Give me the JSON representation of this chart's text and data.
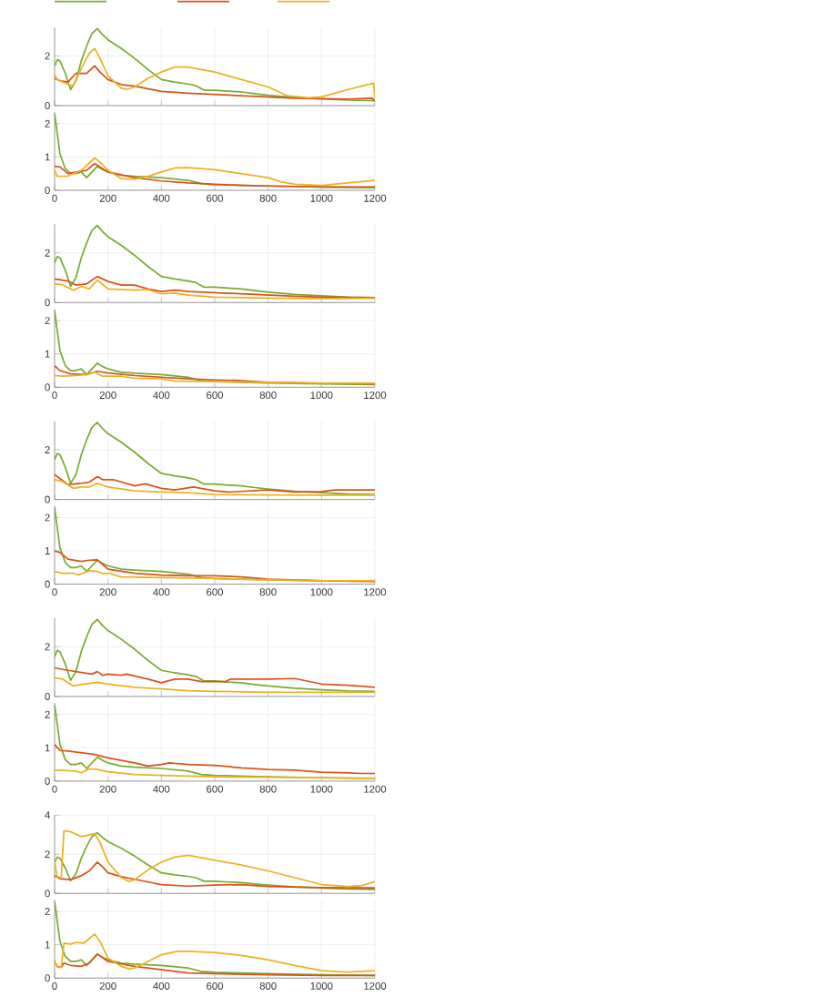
{
  "chart_data": [
    {
      "type": "line",
      "grid": true,
      "tick_labels": "y",
      "xlim": [
        0,
        1200
      ],
      "xticks": [
        0,
        200,
        400,
        600,
        800,
        1000,
        1200
      ],
      "ylim": [
        0,
        3.15
      ],
      "yticks": [
        0,
        2
      ],
      "series": [
        {
          "color": "#77ac30",
          "x": [
            0,
            10,
            20,
            40,
            60,
            80,
            100,
            120,
            140,
            160,
            180,
            200,
            250,
            300,
            350,
            400,
            450,
            500,
            530,
            560,
            600,
            650,
            700,
            750,
            800,
            900,
            1000,
            1100,
            1200
          ],
          "values": [
            1.6,
            1.85,
            1.8,
            1.3,
            0.65,
            1.0,
            1.8,
            2.4,
            2.9,
            3.1,
            2.85,
            2.65,
            2.3,
            1.9,
            1.45,
            1.05,
            0.95,
            0.87,
            0.8,
            0.62,
            0.62,
            0.58,
            0.55,
            0.48,
            0.42,
            0.33,
            0.27,
            0.22,
            0.2
          ]
        },
        {
          "color": "#d95319",
          "x": [
            0,
            20,
            50,
            80,
            100,
            120,
            150,
            170,
            200,
            250,
            300,
            400,
            500,
            600,
            700,
            800,
            900,
            1000,
            1100,
            1190,
            1200
          ],
          "values": [
            1.1,
            1.0,
            0.95,
            1.3,
            1.3,
            1.3,
            1.6,
            1.35,
            1.05,
            0.85,
            0.78,
            0.57,
            0.5,
            0.45,
            0.4,
            0.35,
            0.3,
            0.28,
            0.26,
            0.3,
            0.2
          ]
        },
        {
          "color": "#edb120",
          "x": [
            0,
            10,
            50,
            70,
            100,
            130,
            150,
            170,
            200,
            250,
            270,
            300,
            350,
            400,
            450,
            500,
            600,
            700,
            800,
            870,
            950,
            1000,
            1050,
            1100,
            1150,
            1195,
            1200
          ],
          "values": [
            1.25,
            1.05,
            0.85,
            0.8,
            1.5,
            2.1,
            2.3,
            1.9,
            1.2,
            0.7,
            0.65,
            0.75,
            1.1,
            1.35,
            1.55,
            1.55,
            1.35,
            1.05,
            0.75,
            0.4,
            0.32,
            0.35,
            0.5,
            0.65,
            0.78,
            0.9,
            0.3
          ]
        }
      ]
    },
    {
      "type": "line",
      "grid": true,
      "xlim": [
        0,
        1200
      ],
      "xticks": [
        0,
        200,
        400,
        600,
        800,
        1000,
        1200
      ],
      "ylim": [
        0,
        2.35
      ],
      "yticks": [
        0,
        1,
        2
      ],
      "series": [
        {
          "color": "#77ac30",
          "x": [
            0,
            10,
            20,
            40,
            60,
            80,
            100,
            120,
            140,
            160,
            180,
            200,
            250,
            300,
            400,
            500,
            550,
            600,
            700,
            800,
            1000,
            1200
          ],
          "values": [
            2.3,
            1.7,
            1.1,
            0.65,
            0.5,
            0.5,
            0.55,
            0.38,
            0.55,
            0.72,
            0.62,
            0.55,
            0.45,
            0.42,
            0.38,
            0.3,
            0.2,
            0.17,
            0.15,
            0.13,
            0.1,
            0.08
          ]
        },
        {
          "color": "#d95319",
          "x": [
            0,
            20,
            50,
            80,
            120,
            150,
            200,
            300,
            400,
            500,
            600,
            700,
            800,
            1000,
            1200
          ],
          "values": [
            0.72,
            0.7,
            0.5,
            0.55,
            0.6,
            0.8,
            0.55,
            0.38,
            0.28,
            0.22,
            0.18,
            0.15,
            0.13,
            0.1,
            0.1
          ]
        },
        {
          "color": "#edb120",
          "x": [
            0,
            10,
            50,
            100,
            150,
            170,
            200,
            250,
            300,
            350,
            400,
            450,
            500,
            600,
            700,
            800,
            850,
            900,
            1000,
            1100,
            1200
          ],
          "values": [
            0.6,
            0.42,
            0.43,
            0.6,
            0.97,
            0.85,
            0.6,
            0.35,
            0.33,
            0.42,
            0.55,
            0.67,
            0.68,
            0.62,
            0.5,
            0.38,
            0.25,
            0.18,
            0.15,
            0.22,
            0.3
          ]
        }
      ]
    },
    {
      "type": "line",
      "grid": true,
      "tick_labels": "y",
      "xlim": [
        0,
        1200
      ],
      "xticks": [
        0,
        200,
        400,
        600,
        800,
        1000,
        1200
      ],
      "ylim": [
        0,
        3.15
      ],
      "yticks": [
        0,
        2
      ],
      "series": [
        {
          "color": "#77ac30",
          "x": [
            0,
            10,
            20,
            40,
            60,
            80,
            100,
            120,
            140,
            160,
            180,
            200,
            250,
            300,
            350,
            400,
            450,
            500,
            530,
            560,
            600,
            650,
            700,
            750,
            800,
            900,
            1000,
            1100,
            1200
          ],
          "values": [
            1.6,
            1.85,
            1.8,
            1.3,
            0.65,
            1.0,
            1.8,
            2.4,
            2.9,
            3.1,
            2.85,
            2.65,
            2.3,
            1.9,
            1.45,
            1.05,
            0.95,
            0.87,
            0.8,
            0.62,
            0.62,
            0.58,
            0.55,
            0.48,
            0.42,
            0.33,
            0.27,
            0.22,
            0.2
          ]
        },
        {
          "color": "#d95319",
          "x": [
            0,
            50,
            80,
            120,
            160,
            200,
            250,
            300,
            350,
            400,
            450,
            500,
            600,
            700,
            800,
            900,
            1000,
            1200
          ],
          "values": [
            0.95,
            0.87,
            0.7,
            0.75,
            1.05,
            0.85,
            0.7,
            0.7,
            0.55,
            0.45,
            0.5,
            0.45,
            0.4,
            0.35,
            0.3,
            0.25,
            0.22,
            0.2
          ]
        },
        {
          "color": "#edb120",
          "x": [
            0,
            30,
            70,
            100,
            130,
            160,
            200,
            300,
            350,
            400,
            450,
            500,
            600,
            800,
            1000,
            1200
          ],
          "values": [
            0.75,
            0.72,
            0.5,
            0.65,
            0.55,
            0.9,
            0.55,
            0.5,
            0.52,
            0.35,
            0.38,
            0.3,
            0.22,
            0.18,
            0.15,
            0.17
          ]
        }
      ]
    },
    {
      "type": "line",
      "grid": true,
      "xlim": [
        0,
        1200
      ],
      "xticks": [
        0,
        200,
        400,
        600,
        800,
        1000,
        1200
      ],
      "ylim": [
        0,
        2.35
      ],
      "yticks": [
        0,
        1,
        2
      ],
      "series": [
        {
          "color": "#77ac30",
          "x": [
            0,
            10,
            20,
            40,
            60,
            80,
            100,
            120,
            140,
            160,
            180,
            200,
            250,
            300,
            400,
            500,
            550,
            600,
            700,
            800,
            1000,
            1200
          ],
          "values": [
            2.3,
            1.7,
            1.1,
            0.65,
            0.5,
            0.5,
            0.55,
            0.38,
            0.55,
            0.72,
            0.62,
            0.55,
            0.45,
            0.42,
            0.38,
            0.3,
            0.2,
            0.17,
            0.15,
            0.13,
            0.1,
            0.08
          ]
        },
        {
          "color": "#d95319",
          "x": [
            0,
            20,
            60,
            120,
            160,
            200,
            300,
            400,
            500,
            600,
            700,
            800,
            1000,
            1200
          ],
          "values": [
            0.65,
            0.5,
            0.4,
            0.38,
            0.48,
            0.43,
            0.35,
            0.3,
            0.25,
            0.22,
            0.2,
            0.15,
            0.12,
            0.1
          ]
        },
        {
          "color": "#edb120",
          "x": [
            0,
            30,
            80,
            120,
            150,
            180,
            250,
            300,
            400,
            450,
            600,
            800,
            1000,
            1200
          ],
          "values": [
            0.35,
            0.33,
            0.35,
            0.38,
            0.45,
            0.33,
            0.33,
            0.27,
            0.25,
            0.18,
            0.17,
            0.15,
            0.12,
            0.12
          ]
        }
      ]
    },
    {
      "type": "line",
      "grid": true,
      "tick_labels": "y",
      "xlim": [
        0,
        1200
      ],
      "xticks": [
        0,
        200,
        400,
        600,
        800,
        1000,
        1200
      ],
      "ylim": [
        0,
        3.15
      ],
      "yticks": [
        0,
        2
      ],
      "series": [
        {
          "color": "#77ac30",
          "x": [
            0,
            10,
            20,
            40,
            60,
            80,
            100,
            120,
            140,
            160,
            180,
            200,
            250,
            300,
            350,
            400,
            450,
            500,
            530,
            560,
            600,
            650,
            700,
            750,
            800,
            900,
            1000,
            1100,
            1200
          ],
          "values": [
            1.6,
            1.85,
            1.8,
            1.3,
            0.65,
            1.0,
            1.8,
            2.4,
            2.9,
            3.1,
            2.85,
            2.65,
            2.3,
            1.9,
            1.45,
            1.05,
            0.95,
            0.87,
            0.8,
            0.62,
            0.62,
            0.58,
            0.55,
            0.48,
            0.42,
            0.33,
            0.27,
            0.22,
            0.2
          ]
        },
        {
          "color": "#d95319",
          "x": [
            0,
            50,
            100,
            130,
            160,
            180,
            220,
            300,
            340,
            400,
            450,
            520,
            600,
            650,
            800,
            900,
            1000,
            1050,
            1200
          ],
          "values": [
            1.0,
            0.6,
            0.65,
            0.7,
            0.92,
            0.8,
            0.8,
            0.55,
            0.63,
            0.45,
            0.38,
            0.5,
            0.35,
            0.3,
            0.38,
            0.3,
            0.32,
            0.38,
            0.38
          ]
        },
        {
          "color": "#edb120",
          "x": [
            0,
            30,
            70,
            100,
            130,
            160,
            200,
            300,
            400,
            500,
            600,
            800,
            1000,
            1200
          ],
          "values": [
            0.8,
            0.72,
            0.45,
            0.5,
            0.5,
            0.65,
            0.5,
            0.35,
            0.3,
            0.27,
            0.2,
            0.18,
            0.17,
            0.17
          ]
        }
      ]
    },
    {
      "type": "line",
      "grid": true,
      "xlim": [
        0,
        1200
      ],
      "xticks": [
        0,
        200,
        400,
        600,
        800,
        1000,
        1200
      ],
      "ylim": [
        0,
        2.35
      ],
      "yticks": [
        0,
        1,
        2
      ],
      "series": [
        {
          "color": "#77ac30",
          "x": [
            0,
            10,
            20,
            40,
            60,
            80,
            100,
            120,
            140,
            160,
            180,
            200,
            250,
            300,
            400,
            500,
            550,
            600,
            700,
            800,
            1000,
            1200
          ],
          "values": [
            2.3,
            1.7,
            1.1,
            0.65,
            0.5,
            0.5,
            0.55,
            0.38,
            0.55,
            0.72,
            0.62,
            0.55,
            0.45,
            0.42,
            0.38,
            0.3,
            0.2,
            0.17,
            0.15,
            0.13,
            0.1,
            0.08
          ]
        },
        {
          "color": "#d95319",
          "x": [
            0,
            20,
            50,
            100,
            130,
            160,
            200,
            300,
            400,
            500,
            600,
            700,
            800,
            1000,
            1200
          ],
          "values": [
            1.0,
            0.95,
            0.75,
            0.68,
            0.72,
            0.73,
            0.45,
            0.33,
            0.27,
            0.25,
            0.25,
            0.22,
            0.15,
            0.1,
            0.08
          ]
        },
        {
          "color": "#edb120",
          "x": [
            0,
            30,
            70,
            90,
            130,
            160,
            180,
            200,
            250,
            400,
            600,
            800,
            1000,
            1200
          ],
          "values": [
            0.38,
            0.33,
            0.33,
            0.28,
            0.4,
            0.38,
            0.32,
            0.33,
            0.22,
            0.2,
            0.17,
            0.13,
            0.1,
            0.1
          ]
        }
      ]
    },
    {
      "type": "line",
      "grid": true,
      "tick_labels": "y",
      "xlim": [
        0,
        1200
      ],
      "xticks": [
        0,
        200,
        400,
        600,
        800,
        1000,
        1200
      ],
      "ylim": [
        0,
        3.15
      ],
      "yticks": [
        0,
        2
      ],
      "series": [
        {
          "color": "#77ac30",
          "x": [
            0,
            10,
            20,
            40,
            60,
            80,
            100,
            120,
            140,
            160,
            180,
            200,
            250,
            300,
            350,
            400,
            450,
            500,
            530,
            560,
            600,
            650,
            700,
            750,
            800,
            900,
            1000,
            1100,
            1200
          ],
          "values": [
            1.6,
            1.85,
            1.8,
            1.3,
            0.65,
            1.0,
            1.8,
            2.4,
            2.9,
            3.1,
            2.85,
            2.65,
            2.3,
            1.9,
            1.45,
            1.05,
            0.95,
            0.87,
            0.8,
            0.62,
            0.62,
            0.58,
            0.55,
            0.48,
            0.42,
            0.33,
            0.27,
            0.22,
            0.2
          ]
        },
        {
          "color": "#d95319",
          "x": [
            0,
            50,
            80,
            140,
            160,
            180,
            200,
            250,
            270,
            350,
            400,
            450,
            500,
            550,
            640,
            660,
            800,
            900,
            1000,
            1100,
            1200
          ],
          "values": [
            1.15,
            1.05,
            1.0,
            0.9,
            1.0,
            0.85,
            0.9,
            0.85,
            0.9,
            0.7,
            0.55,
            0.7,
            0.7,
            0.6,
            0.6,
            0.7,
            0.7,
            0.72,
            0.5,
            0.45,
            0.37
          ]
        },
        {
          "color": "#edb120",
          "x": [
            0,
            30,
            70,
            100,
            160,
            200,
            300,
            400,
            500,
            600,
            800,
            1000,
            1200
          ],
          "values": [
            0.75,
            0.7,
            0.42,
            0.48,
            0.57,
            0.5,
            0.37,
            0.3,
            0.23,
            0.2,
            0.17,
            0.17,
            0.17
          ]
        }
      ]
    },
    {
      "type": "line",
      "grid": true,
      "xlim": [
        0,
        1200
      ],
      "xticks": [
        0,
        200,
        400,
        600,
        800,
        1000,
        1200
      ],
      "ylim": [
        0,
        2.35
      ],
      "yticks": [
        0,
        1,
        2
      ],
      "series": [
        {
          "color": "#77ac30",
          "x": [
            0,
            10,
            20,
            40,
            60,
            80,
            100,
            120,
            140,
            160,
            180,
            200,
            250,
            300,
            400,
            500,
            550,
            600,
            700,
            800,
            1000,
            1200
          ],
          "values": [
            2.3,
            1.7,
            1.1,
            0.65,
            0.5,
            0.5,
            0.55,
            0.38,
            0.55,
            0.72,
            0.62,
            0.55,
            0.45,
            0.42,
            0.38,
            0.3,
            0.2,
            0.17,
            0.15,
            0.13,
            0.1,
            0.08
          ]
        },
        {
          "color": "#d95319",
          "x": [
            0,
            20,
            50,
            150,
            200,
            300,
            350,
            400,
            430,
            500,
            600,
            700,
            800,
            900,
            1000,
            1100,
            1150,
            1200
          ],
          "values": [
            1.1,
            0.92,
            0.9,
            0.8,
            0.7,
            0.55,
            0.45,
            0.5,
            0.55,
            0.5,
            0.47,
            0.4,
            0.35,
            0.33,
            0.27,
            0.25,
            0.23,
            0.23
          ]
        },
        {
          "color": "#edb120",
          "x": [
            0,
            30,
            80,
            100,
            130,
            160,
            200,
            300,
            400,
            500,
            600,
            800,
            1000,
            1200
          ],
          "values": [
            0.33,
            0.32,
            0.3,
            0.25,
            0.37,
            0.35,
            0.28,
            0.2,
            0.17,
            0.15,
            0.13,
            0.12,
            0.1,
            0.08
          ]
        }
      ]
    },
    {
      "type": "line",
      "grid": true,
      "tick_labels": "y",
      "xlim": [
        0,
        1200
      ],
      "xticks": [
        0,
        200,
        400,
        600,
        800,
        1000,
        1200
      ],
      "ylim": [
        0,
        4
      ],
      "yticks": [
        0,
        2,
        4
      ],
      "series": [
        {
          "color": "#77ac30",
          "x": [
            0,
            10,
            20,
            40,
            60,
            80,
            100,
            120,
            140,
            160,
            180,
            200,
            250,
            300,
            350,
            400,
            450,
            500,
            530,
            560,
            600,
            650,
            700,
            750,
            800,
            900,
            1000,
            1100,
            1200
          ],
          "values": [
            1.6,
            1.85,
            1.8,
            1.3,
            0.65,
            1.0,
            1.8,
            2.4,
            2.9,
            3.1,
            2.85,
            2.65,
            2.3,
            1.9,
            1.45,
            1.05,
            0.95,
            0.87,
            0.8,
            0.62,
            0.62,
            0.58,
            0.55,
            0.48,
            0.42,
            0.33,
            0.27,
            0.22,
            0.2
          ]
        },
        {
          "color": "#d95319",
          "x": [
            0,
            20,
            60,
            100,
            130,
            160,
            180,
            200,
            250,
            300,
            400,
            500,
            600,
            700,
            800,
            1000,
            1200
          ],
          "values": [
            0.9,
            0.75,
            0.7,
            0.9,
            1.15,
            1.6,
            1.35,
            1.05,
            0.85,
            0.72,
            0.45,
            0.37,
            0.42,
            0.45,
            0.35,
            0.3,
            0.28
          ]
        },
        {
          "color": "#edb120",
          "x": [
            0,
            10,
            25,
            35,
            60,
            100,
            150,
            170,
            200,
            250,
            280,
            300,
            350,
            400,
            450,
            500,
            600,
            700,
            800,
            900,
            1000,
            1100,
            1150,
            1200
          ],
          "values": [
            1.6,
            0.85,
            0.8,
            3.2,
            3.15,
            2.9,
            3.05,
            2.6,
            1.6,
            0.8,
            0.6,
            0.7,
            1.2,
            1.6,
            1.85,
            1.95,
            1.7,
            1.45,
            1.15,
            0.8,
            0.45,
            0.35,
            0.4,
            0.6
          ]
        }
      ]
    },
    {
      "type": "line",
      "grid": true,
      "xlim": [
        0,
        1200
      ],
      "xticks": [
        0,
        200,
        400,
        600,
        800,
        1000,
        1200
      ],
      "ylim": [
        0,
        2.35
      ],
      "yticks": [
        0,
        1,
        2
      ],
      "series": [
        {
          "color": "#77ac30",
          "x": [
            0,
            10,
            20,
            40,
            60,
            80,
            100,
            120,
            140,
            160,
            180,
            200,
            250,
            300,
            400,
            500,
            550,
            600,
            700,
            800,
            1000,
            1200
          ],
          "values": [
            2.3,
            1.7,
            1.1,
            0.65,
            0.5,
            0.5,
            0.55,
            0.38,
            0.55,
            0.72,
            0.62,
            0.55,
            0.45,
            0.42,
            0.38,
            0.3,
            0.2,
            0.17,
            0.15,
            0.13,
            0.1,
            0.08
          ]
        },
        {
          "color": "#d95319",
          "x": [
            0,
            10,
            25,
            35,
            60,
            100,
            130,
            160,
            200,
            300,
            400,
            500,
            600,
            800,
            1000,
            1200
          ],
          "values": [
            0.5,
            0.35,
            0.32,
            0.45,
            0.38,
            0.35,
            0.45,
            0.72,
            0.5,
            0.35,
            0.25,
            0.15,
            0.13,
            0.1,
            0.08,
            0.08
          ]
        },
        {
          "color": "#edb120",
          "x": [
            0,
            10,
            25,
            35,
            60,
            80,
            110,
            150,
            170,
            200,
            250,
            280,
            300,
            350,
            400,
            460,
            500,
            600,
            700,
            800,
            900,
            1000,
            1100,
            1200
          ],
          "values": [
            0.55,
            0.33,
            0.32,
            1.05,
            1.02,
            1.07,
            1.05,
            1.32,
            1.1,
            0.6,
            0.35,
            0.27,
            0.3,
            0.5,
            0.7,
            0.8,
            0.8,
            0.77,
            0.68,
            0.55,
            0.38,
            0.22,
            0.18,
            0.22
          ]
        }
      ]
    }
  ]
}
